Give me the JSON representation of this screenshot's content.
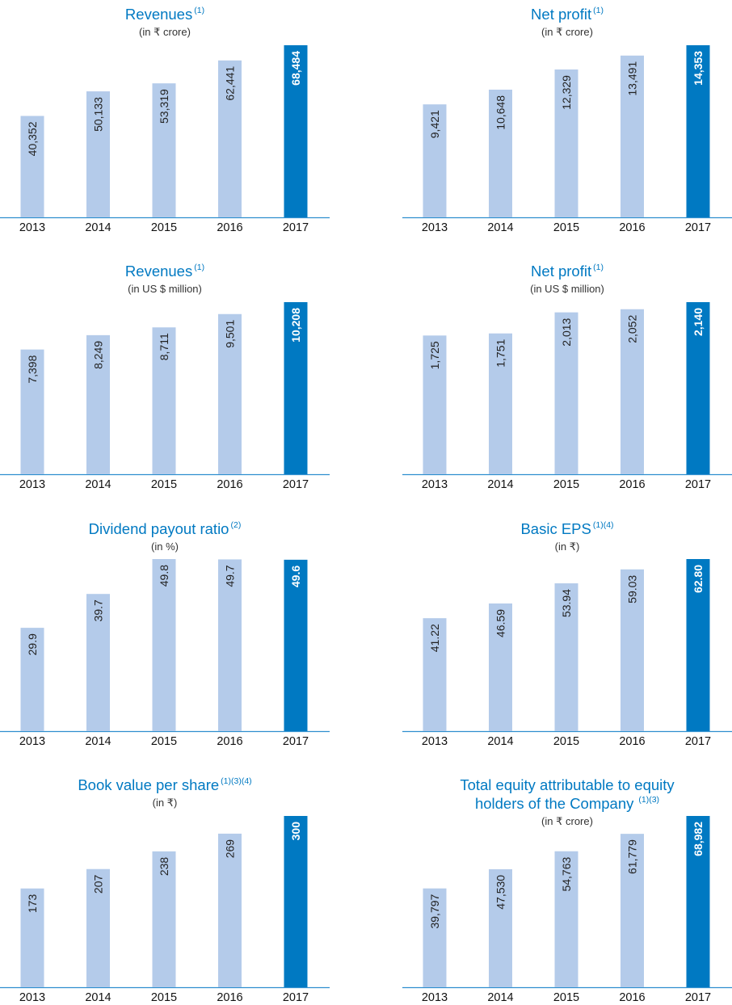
{
  "colors": {
    "regular": "#b4cbea",
    "highlight": "#0079c2",
    "title": "#0079c2",
    "axis": "#2f8fcf"
  },
  "chart_data": [
    {
      "type": "bar",
      "title": "Revenues",
      "title_note": "(1)",
      "subtitle": "(in ₹ crore)",
      "categories": [
        "2013",
        "2014",
        "2015",
        "2016",
        "2017"
      ],
      "values": [
        40352,
        50133,
        53319,
        62441,
        68484
      ],
      "value_labels": [
        "40,352",
        "50,133",
        "53,319",
        "62,441",
        "68,484"
      ],
      "highlight_index": 4
    },
    {
      "type": "bar",
      "title": "Net profit",
      "title_note": "(1)",
      "subtitle": "(in ₹ crore)",
      "categories": [
        "2013",
        "2014",
        "2015",
        "2016",
        "2017"
      ],
      "values": [
        9421,
        10648,
        12329,
        13491,
        14353
      ],
      "value_labels": [
        "9,421",
        "10,648",
        "12,329",
        "13,491",
        "14,353"
      ],
      "highlight_index": 4
    },
    {
      "type": "bar",
      "title": "Revenues",
      "title_note": "(1)",
      "subtitle": "(in US $ million)",
      "categories": [
        "2013",
        "2014",
        "2015",
        "2016",
        "2017"
      ],
      "values": [
        7398,
        8249,
        8711,
        9501,
        10208
      ],
      "value_labels": [
        "7,398",
        "8,249",
        "8,711",
        "9,501",
        "10,208"
      ],
      "highlight_index": 4
    },
    {
      "type": "bar",
      "title": "Net profit",
      "title_note": "(1)",
      "subtitle": "(in US $ million)",
      "categories": [
        "2013",
        "2014",
        "2015",
        "2016",
        "2017"
      ],
      "values": [
        1725,
        1751,
        2013,
        2052,
        2140
      ],
      "value_labels": [
        "1,725",
        "1,751",
        "2,013",
        "2,052",
        "2,140"
      ],
      "highlight_index": 4
    },
    {
      "type": "bar",
      "title": "Dividend payout ratio",
      "title_note": "(2)",
      "subtitle": "(in %)",
      "categories": [
        "2013",
        "2014",
        "2015",
        "2016",
        "2017"
      ],
      "values": [
        29.9,
        39.7,
        49.8,
        49.7,
        49.6
      ],
      "value_labels": [
        "29.9",
        "39.7",
        "49.8",
        "49.7",
        "49.6"
      ],
      "highlight_index": 4
    },
    {
      "type": "bar",
      "title": "Basic EPS",
      "title_note": "(1)(4)",
      "subtitle": "(in ₹)",
      "categories": [
        "2013",
        "2014",
        "2015",
        "2016",
        "2017"
      ],
      "values": [
        41.22,
        46.59,
        53.94,
        59.03,
        62.8
      ],
      "value_labels": [
        "41.22",
        "46.59",
        "53.94",
        "59.03",
        "62.80"
      ],
      "highlight_index": 4
    },
    {
      "type": "bar",
      "title": "Book value per share",
      "title_note": "(1)(3)(4)",
      "subtitle": "(in ₹)",
      "categories": [
        "2013",
        "2014",
        "2015",
        "2016",
        "2017"
      ],
      "values": [
        173,
        207,
        238,
        269,
        300
      ],
      "value_labels": [
        "173",
        "207",
        "238",
        "269",
        "300"
      ],
      "highlight_index": 4
    },
    {
      "type": "bar",
      "title": "Total equity attributable to equity",
      "title_line2": "holders of the Company",
      "title_note": "(1)(3)",
      "subtitle": "(in ₹ crore)",
      "categories": [
        "2013",
        "2014",
        "2015",
        "2016",
        "2017"
      ],
      "values": [
        39797,
        47530,
        54763,
        61779,
        68982
      ],
      "value_labels": [
        "39,797",
        "47,530",
        "54,763",
        "61,779",
        "68,982"
      ],
      "highlight_index": 4
    }
  ]
}
